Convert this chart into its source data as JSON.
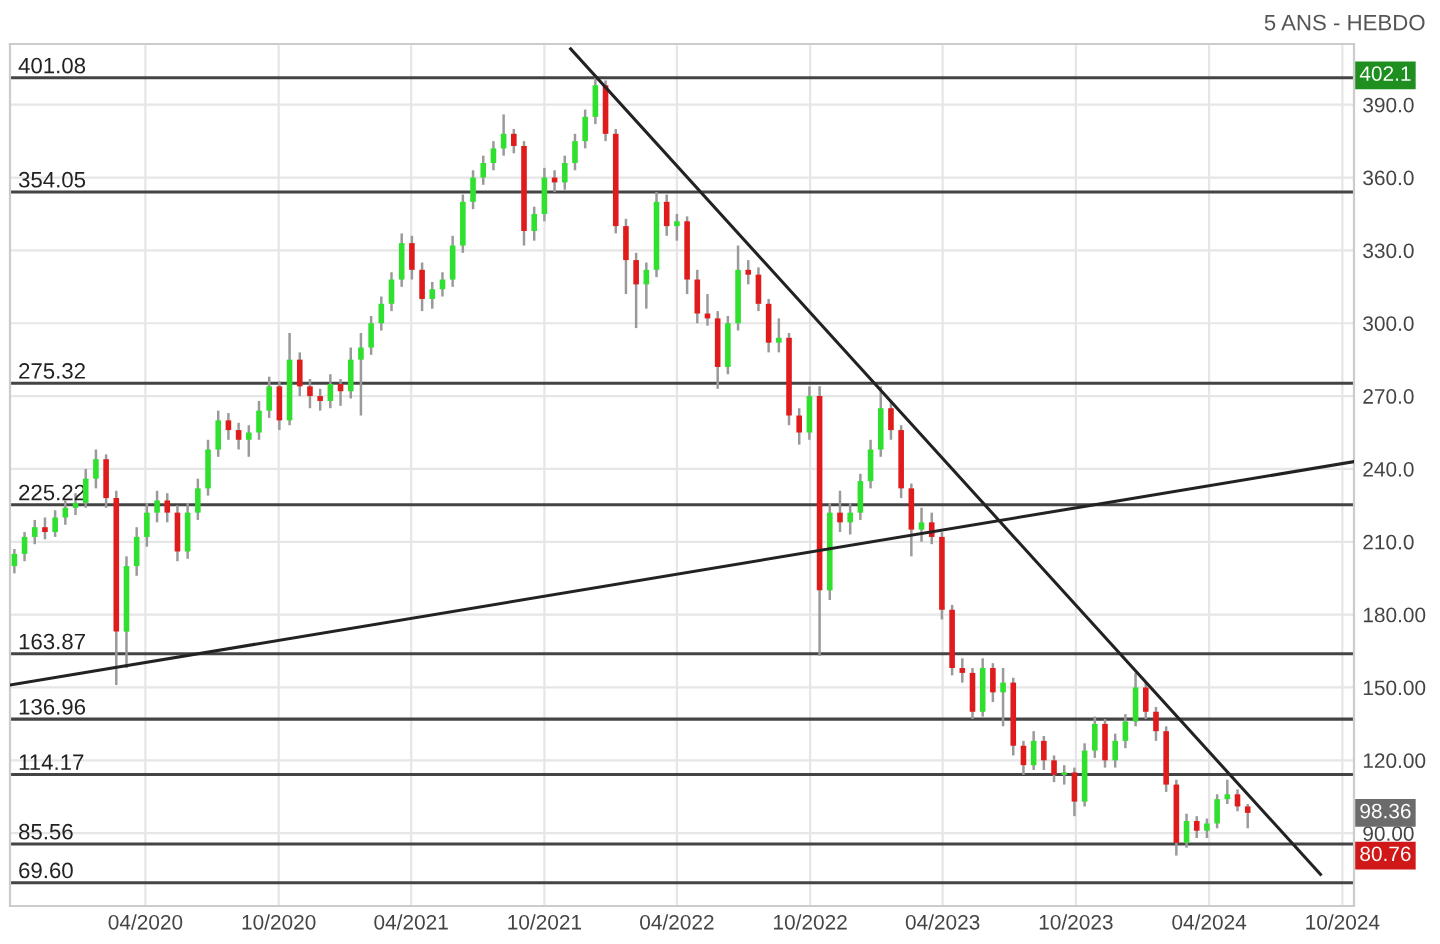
{
  "chart_data": {
    "type": "candlestick",
    "x": [
      "2019-10-04",
      "2019-10-18",
      "2019-11-01",
      "2019-11-15",
      "2019-11-29",
      "2019-12-13",
      "2019-12-27",
      "2020-01-10",
      "2020-01-24",
      "2020-02-07",
      "2020-02-21",
      "2020-03-06",
      "2020-03-20",
      "2020-04-03",
      "2020-04-17",
      "2020-05-01",
      "2020-05-15",
      "2020-05-29",
      "2020-06-12",
      "2020-06-26",
      "2020-07-10",
      "2020-07-24",
      "2020-08-07",
      "2020-08-21",
      "2020-09-04",
      "2020-09-18",
      "2020-10-02",
      "2020-10-16",
      "2020-10-30",
      "2020-11-13",
      "2020-11-27",
      "2020-12-11",
      "2020-12-25",
      "2021-01-08",
      "2021-01-22",
      "2021-02-05",
      "2021-02-19",
      "2021-03-05",
      "2021-03-19",
      "2021-04-02",
      "2021-04-16",
      "2021-04-30",
      "2021-05-14",
      "2021-05-28",
      "2021-06-11",
      "2021-06-25",
      "2021-07-09",
      "2021-07-23",
      "2021-08-06",
      "2021-08-20",
      "2021-09-03",
      "2021-09-17",
      "2021-10-01",
      "2021-10-15",
      "2021-10-29",
      "2021-11-12",
      "2021-11-26",
      "2021-12-10",
      "2021-12-24",
      "2022-01-07",
      "2022-01-21",
      "2022-02-04",
      "2022-02-18",
      "2022-03-04",
      "2022-03-18",
      "2022-04-01",
      "2022-04-15",
      "2022-04-29",
      "2022-05-13",
      "2022-05-27",
      "2022-06-10",
      "2022-06-24",
      "2022-07-08",
      "2022-07-22",
      "2022-08-05",
      "2022-08-19",
      "2022-09-02",
      "2022-09-16",
      "2022-09-30",
      "2022-10-14",
      "2022-10-28",
      "2022-11-11",
      "2022-11-25",
      "2022-12-09",
      "2022-12-23",
      "2023-01-06",
      "2023-01-20",
      "2023-02-03",
      "2023-02-17",
      "2023-03-03",
      "2023-03-17",
      "2023-03-31",
      "2023-04-14",
      "2023-04-28",
      "2023-05-12",
      "2023-05-26",
      "2023-06-09",
      "2023-06-23",
      "2023-07-07",
      "2023-07-21",
      "2023-08-04",
      "2023-08-18",
      "2023-09-01",
      "2023-09-15",
      "2023-09-29",
      "2023-10-13",
      "2023-10-27",
      "2023-11-10",
      "2023-11-24",
      "2023-12-08",
      "2023-12-22",
      "2024-01-05",
      "2024-01-19",
      "2024-02-02",
      "2024-02-16",
      "2024-03-01",
      "2024-03-15",
      "2024-03-29",
      "2024-04-12",
      "2024-04-26",
      "2024-05-10",
      "2024-05-24"
    ],
    "ohlc": [
      [
        200,
        207,
        197,
        205
      ],
      [
        205,
        214,
        202,
        212
      ],
      [
        212,
        219,
        209,
        216
      ],
      [
        216,
        220,
        211,
        214
      ],
      [
        214,
        223,
        212,
        220
      ],
      [
        220,
        227,
        217,
        224
      ],
      [
        224,
        230,
        221,
        226
      ],
      [
        226,
        240,
        224,
        236
      ],
      [
        236,
        248,
        232,
        244
      ],
      [
        244,
        246,
        224,
        228
      ],
      [
        228,
        231,
        151,
        173
      ],
      [
        173,
        204,
        158,
        200
      ],
      [
        200,
        216,
        196,
        212
      ],
      [
        212,
        226,
        208,
        222
      ],
      [
        222,
        231,
        218,
        227
      ],
      [
        227,
        230,
        218,
        222
      ],
      [
        222,
        225,
        202,
        206
      ],
      [
        206,
        226,
        203,
        222
      ],
      [
        222,
        236,
        219,
        232
      ],
      [
        232,
        252,
        229,
        248
      ],
      [
        248,
        264,
        245,
        260
      ],
      [
        260,
        263,
        252,
        256
      ],
      [
        256,
        259,
        248,
        252
      ],
      [
        252,
        258,
        245,
        255
      ],
      [
        255,
        268,
        252,
        264
      ],
      [
        264,
        278,
        261,
        274
      ],
      [
        274,
        276,
        256,
        260
      ],
      [
        260,
        296,
        258,
        285
      ],
      [
        285,
        288,
        270,
        274
      ],
      [
        274,
        277,
        265,
        270
      ],
      [
        270,
        273,
        264,
        268
      ],
      [
        268,
        279,
        265,
        275
      ],
      [
        275,
        277,
        266,
        272
      ],
      [
        272,
        290,
        269,
        285
      ],
      [
        285,
        296,
        262,
        290
      ],
      [
        290,
        303,
        287,
        300
      ],
      [
        300,
        311,
        297,
        308
      ],
      [
        308,
        321,
        305,
        318
      ],
      [
        318,
        337,
        315,
        333
      ],
      [
        333,
        336,
        318,
        322
      ],
      [
        322,
        325,
        305,
        310
      ],
      [
        310,
        317,
        306,
        314
      ],
      [
        314,
        321,
        311,
        318
      ],
      [
        318,
        336,
        315,
        332
      ],
      [
        332,
        353,
        329,
        350
      ],
      [
        350,
        363,
        347,
        360
      ],
      [
        360,
        369,
        357,
        366
      ],
      [
        366,
        375,
        363,
        372
      ],
      [
        372,
        386,
        369,
        378
      ],
      [
        378,
        380,
        370,
        373
      ],
      [
        373,
        375,
        332,
        338
      ],
      [
        338,
        348,
        334,
        345
      ],
      [
        345,
        364,
        342,
        360
      ],
      [
        360,
        363,
        354,
        358
      ],
      [
        358,
        369,
        355,
        366
      ],
      [
        366,
        378,
        363,
        375
      ],
      [
        375,
        388,
        372,
        385
      ],
      [
        385,
        402.1,
        382,
        398
      ],
      [
        398,
        400,
        375,
        378
      ],
      [
        378,
        380,
        337,
        340
      ],
      [
        340,
        343,
        312,
        326
      ],
      [
        326,
        329,
        298,
        316
      ],
      [
        316,
        325,
        306,
        322
      ],
      [
        322,
        354,
        319,
        350
      ],
      [
        350,
        353,
        336,
        340
      ],
      [
        340,
        345,
        334,
        342
      ],
      [
        342,
        344,
        312,
        318
      ],
      [
        318,
        322,
        300,
        304
      ],
      [
        304,
        312,
        299,
        302
      ],
      [
        302,
        305,
        273,
        282
      ],
      [
        282,
        303,
        279,
        300
      ],
      [
        300,
        332,
        297,
        322
      ],
      [
        322,
        326,
        316,
        320
      ],
      [
        320,
        323,
        305,
        308
      ],
      [
        308,
        310,
        288,
        292
      ],
      [
        292,
        302,
        288,
        294
      ],
      [
        294,
        296,
        258,
        262
      ],
      [
        262,
        265,
        250,
        255
      ],
      [
        255,
        274,
        252,
        270
      ],
      [
        270,
        274,
        163,
        190
      ],
      [
        190,
        226,
        186,
        222
      ],
      [
        222,
        231,
        214,
        218
      ],
      [
        218,
        226,
        213,
        222
      ],
      [
        222,
        238,
        219,
        235
      ],
      [
        235,
        252,
        232,
        248
      ],
      [
        248,
        274,
        245,
        265
      ],
      [
        265,
        268,
        252,
        256
      ],
      [
        256,
        258,
        228,
        232
      ],
      [
        232,
        234,
        204,
        215
      ],
      [
        215,
        224,
        210,
        218
      ],
      [
        218,
        222,
        209,
        212
      ],
      [
        212,
        214,
        178,
        182
      ],
      [
        182,
        184,
        155,
        158
      ],
      [
        158,
        162,
        152,
        156
      ],
      [
        156,
        158,
        137,
        140
      ],
      [
        140,
        162,
        138,
        158
      ],
      [
        158,
        160,
        144,
        148
      ],
      [
        148,
        158,
        134,
        152
      ],
      [
        152,
        154,
        122,
        126
      ],
      [
        126,
        128,
        114,
        118
      ],
      [
        118,
        132,
        116,
        128
      ],
      [
        128,
        130,
        116,
        120
      ],
      [
        120,
        122,
        111,
        114
      ],
      [
        114,
        118,
        110,
        115
      ],
      [
        115,
        117,
        97,
        103
      ],
      [
        103,
        127,
        101,
        124
      ],
      [
        124,
        138,
        121,
        135
      ],
      [
        135,
        137,
        117,
        120
      ],
      [
        120,
        131,
        117,
        128
      ],
      [
        128,
        139,
        125,
        136
      ],
      [
        136,
        156,
        134,
        150
      ],
      [
        150,
        152,
        137,
        140
      ],
      [
        140,
        142,
        128,
        132
      ],
      [
        132,
        134,
        107,
        110
      ],
      [
        110,
        112,
        80.76,
        86
      ],
      [
        86,
        98,
        84,
        95
      ],
      [
        95,
        97,
        88,
        91
      ],
      [
        91,
        96,
        88,
        94
      ],
      [
        94,
        106,
        92,
        104
      ],
      [
        104,
        112,
        102,
        106
      ],
      [
        106,
        108,
        99,
        101
      ],
      [
        101,
        102,
        92,
        98.36
      ]
    ],
    "colors": [
      "#2fe02f",
      "#2fe02f",
      "#2fe02f",
      "#e01b1b",
      "#2fe02f",
      "#2fe02f",
      "#2fe02f",
      "#2fe02f",
      "#2fe02f",
      "#e01b1b",
      "#e01b1b",
      "#2fe02f",
      "#2fe02f",
      "#2fe02f",
      "#2fe02f",
      "#e01b1b",
      "#e01b1b",
      "#2fe02f",
      "#2fe02f",
      "#2fe02f",
      "#2fe02f",
      "#e01b1b",
      "#e01b1b",
      "#2fe02f",
      "#2fe02f",
      "#2fe02f",
      "#e01b1b",
      "#2fe02f",
      "#e01b1b",
      "#e01b1b",
      "#e01b1b",
      "#2fe02f",
      "#e01b1b",
      "#2fe02f",
      "#2fe02f",
      "#2fe02f",
      "#2fe02f",
      "#2fe02f",
      "#2fe02f",
      "#e01b1b",
      "#e01b1b",
      "#2fe02f",
      "#2fe02f",
      "#2fe02f",
      "#2fe02f",
      "#2fe02f",
      "#2fe02f",
      "#2fe02f",
      "#2fe02f",
      "#e01b1b",
      "#e01b1b",
      "#2fe02f",
      "#2fe02f",
      "#e01b1b",
      "#2fe02f",
      "#2fe02f",
      "#2fe02f",
      "#2fe02f",
      "#e01b1b",
      "#e01b1b",
      "#e01b1b",
      "#e01b1b",
      "#2fe02f",
      "#2fe02f",
      "#e01b1b",
      "#2fe02f",
      "#e01b1b",
      "#e01b1b",
      "#e01b1b",
      "#e01b1b",
      "#2fe02f",
      "#2fe02f",
      "#e01b1b",
      "#e01b1b",
      "#e01b1b",
      "#2fe02f",
      "#e01b1b",
      "#e01b1b",
      "#2fe02f",
      "#e01b1b",
      "#2fe02f",
      "#e01b1b",
      "#2fe02f",
      "#2fe02f",
      "#2fe02f",
      "#2fe02f",
      "#e01b1b",
      "#e01b1b",
      "#e01b1b",
      "#2fe02f",
      "#e01b1b",
      "#e01b1b",
      "#e01b1b",
      "#e01b1b",
      "#e01b1b",
      "#2fe02f",
      "#e01b1b",
      "#2fe02f",
      "#e01b1b",
      "#e01b1b",
      "#2fe02f",
      "#e01b1b",
      "#e01b1b",
      "#2fe02f",
      "#e01b1b",
      "#2fe02f",
      "#2fe02f",
      "#e01b1b",
      "#2fe02f",
      "#2fe02f",
      "#2fe02f",
      "#e01b1b",
      "#e01b1b",
      "#e01b1b",
      "#e01b1b",
      "#2fe02f",
      "#e01b1b",
      "#2fe02f",
      "#2fe02f",
      "#2fe02f",
      "#e01b1b",
      "#e01b1b"
    ],
    "series": [
      {
        "type": "line",
        "color": "#222222",
        "x": [
          "2019-09-28",
          "2024-10-17"
        ],
        "values": [
          151,
          243
        ]
      },
      {
        "type": "line",
        "color": "#222222",
        "x": [
          "2021-11-06",
          "2024-09-01"
        ],
        "values": [
          413,
          73
        ]
      }
    ],
    "ref_lines": [
      {
        "axis": "y",
        "value": 401.08,
        "label": "401.08",
        "color": "#444444"
      },
      {
        "axis": "y",
        "value": 354.05,
        "label": "354.05",
        "color": "#444444"
      },
      {
        "axis": "y",
        "value": 275.32,
        "label": "275.32",
        "color": "#444444"
      },
      {
        "axis": "y",
        "value": 225.22,
        "label": "225.22",
        "color": "#444444"
      },
      {
        "axis": "y",
        "value": 163.87,
        "label": "163.87",
        "color": "#444444"
      },
      {
        "axis": "y",
        "value": 136.96,
        "label": "136.96",
        "color": "#444444"
      },
      {
        "axis": "y",
        "value": 114.17,
        "label": "114.17",
        "color": "#444444"
      },
      {
        "axis": "y",
        "value": 85.56,
        "label": "85.56",
        "color": "#444444"
      },
      {
        "axis": "y",
        "value": 69.6,
        "label": "69.60",
        "color": "#444444"
      }
    ],
    "annotations": [
      "5 ANS - HEBDO",
      "402.1",
      "98.36",
      "80.76"
    ],
    "xlim": [
      "2019-09-28",
      "2024-10-17"
    ],
    "xticks": [
      {
        "value": "2020-04-01",
        "label": "04/2020"
      },
      {
        "value": "2020-10-01",
        "label": "10/2020"
      },
      {
        "value": "2021-04-01",
        "label": "04/2021"
      },
      {
        "value": "2021-10-01",
        "label": "10/2021"
      },
      {
        "value": "2022-04-01",
        "label": "04/2022"
      },
      {
        "value": "2022-10-01",
        "label": "10/2022"
      },
      {
        "value": "2023-04-01",
        "label": "04/2023"
      },
      {
        "value": "2023-10-01",
        "label": "10/2023"
      },
      {
        "value": "2024-04-01",
        "label": "04/2024"
      },
      {
        "value": "2024-10-01",
        "label": "10/2024"
      }
    ],
    "ylim": [
      60,
      415
    ],
    "yticks": [
      {
        "value": 90,
        "label": "90.00"
      },
      {
        "value": 120,
        "label": "120.00"
      },
      {
        "value": 150,
        "label": "150.00"
      },
      {
        "value": 180,
        "label": "180.00"
      },
      {
        "value": 210,
        "label": "210.0"
      },
      {
        "value": 240,
        "label": "240.0"
      },
      {
        "value": 270,
        "label": "270.0"
      },
      {
        "value": 300,
        "label": "300.0"
      },
      {
        "value": 330,
        "label": "330.0"
      },
      {
        "value": 360,
        "label": "360.0"
      },
      {
        "value": 390,
        "label": "390.0"
      }
    ],
    "grid": true
  }
}
